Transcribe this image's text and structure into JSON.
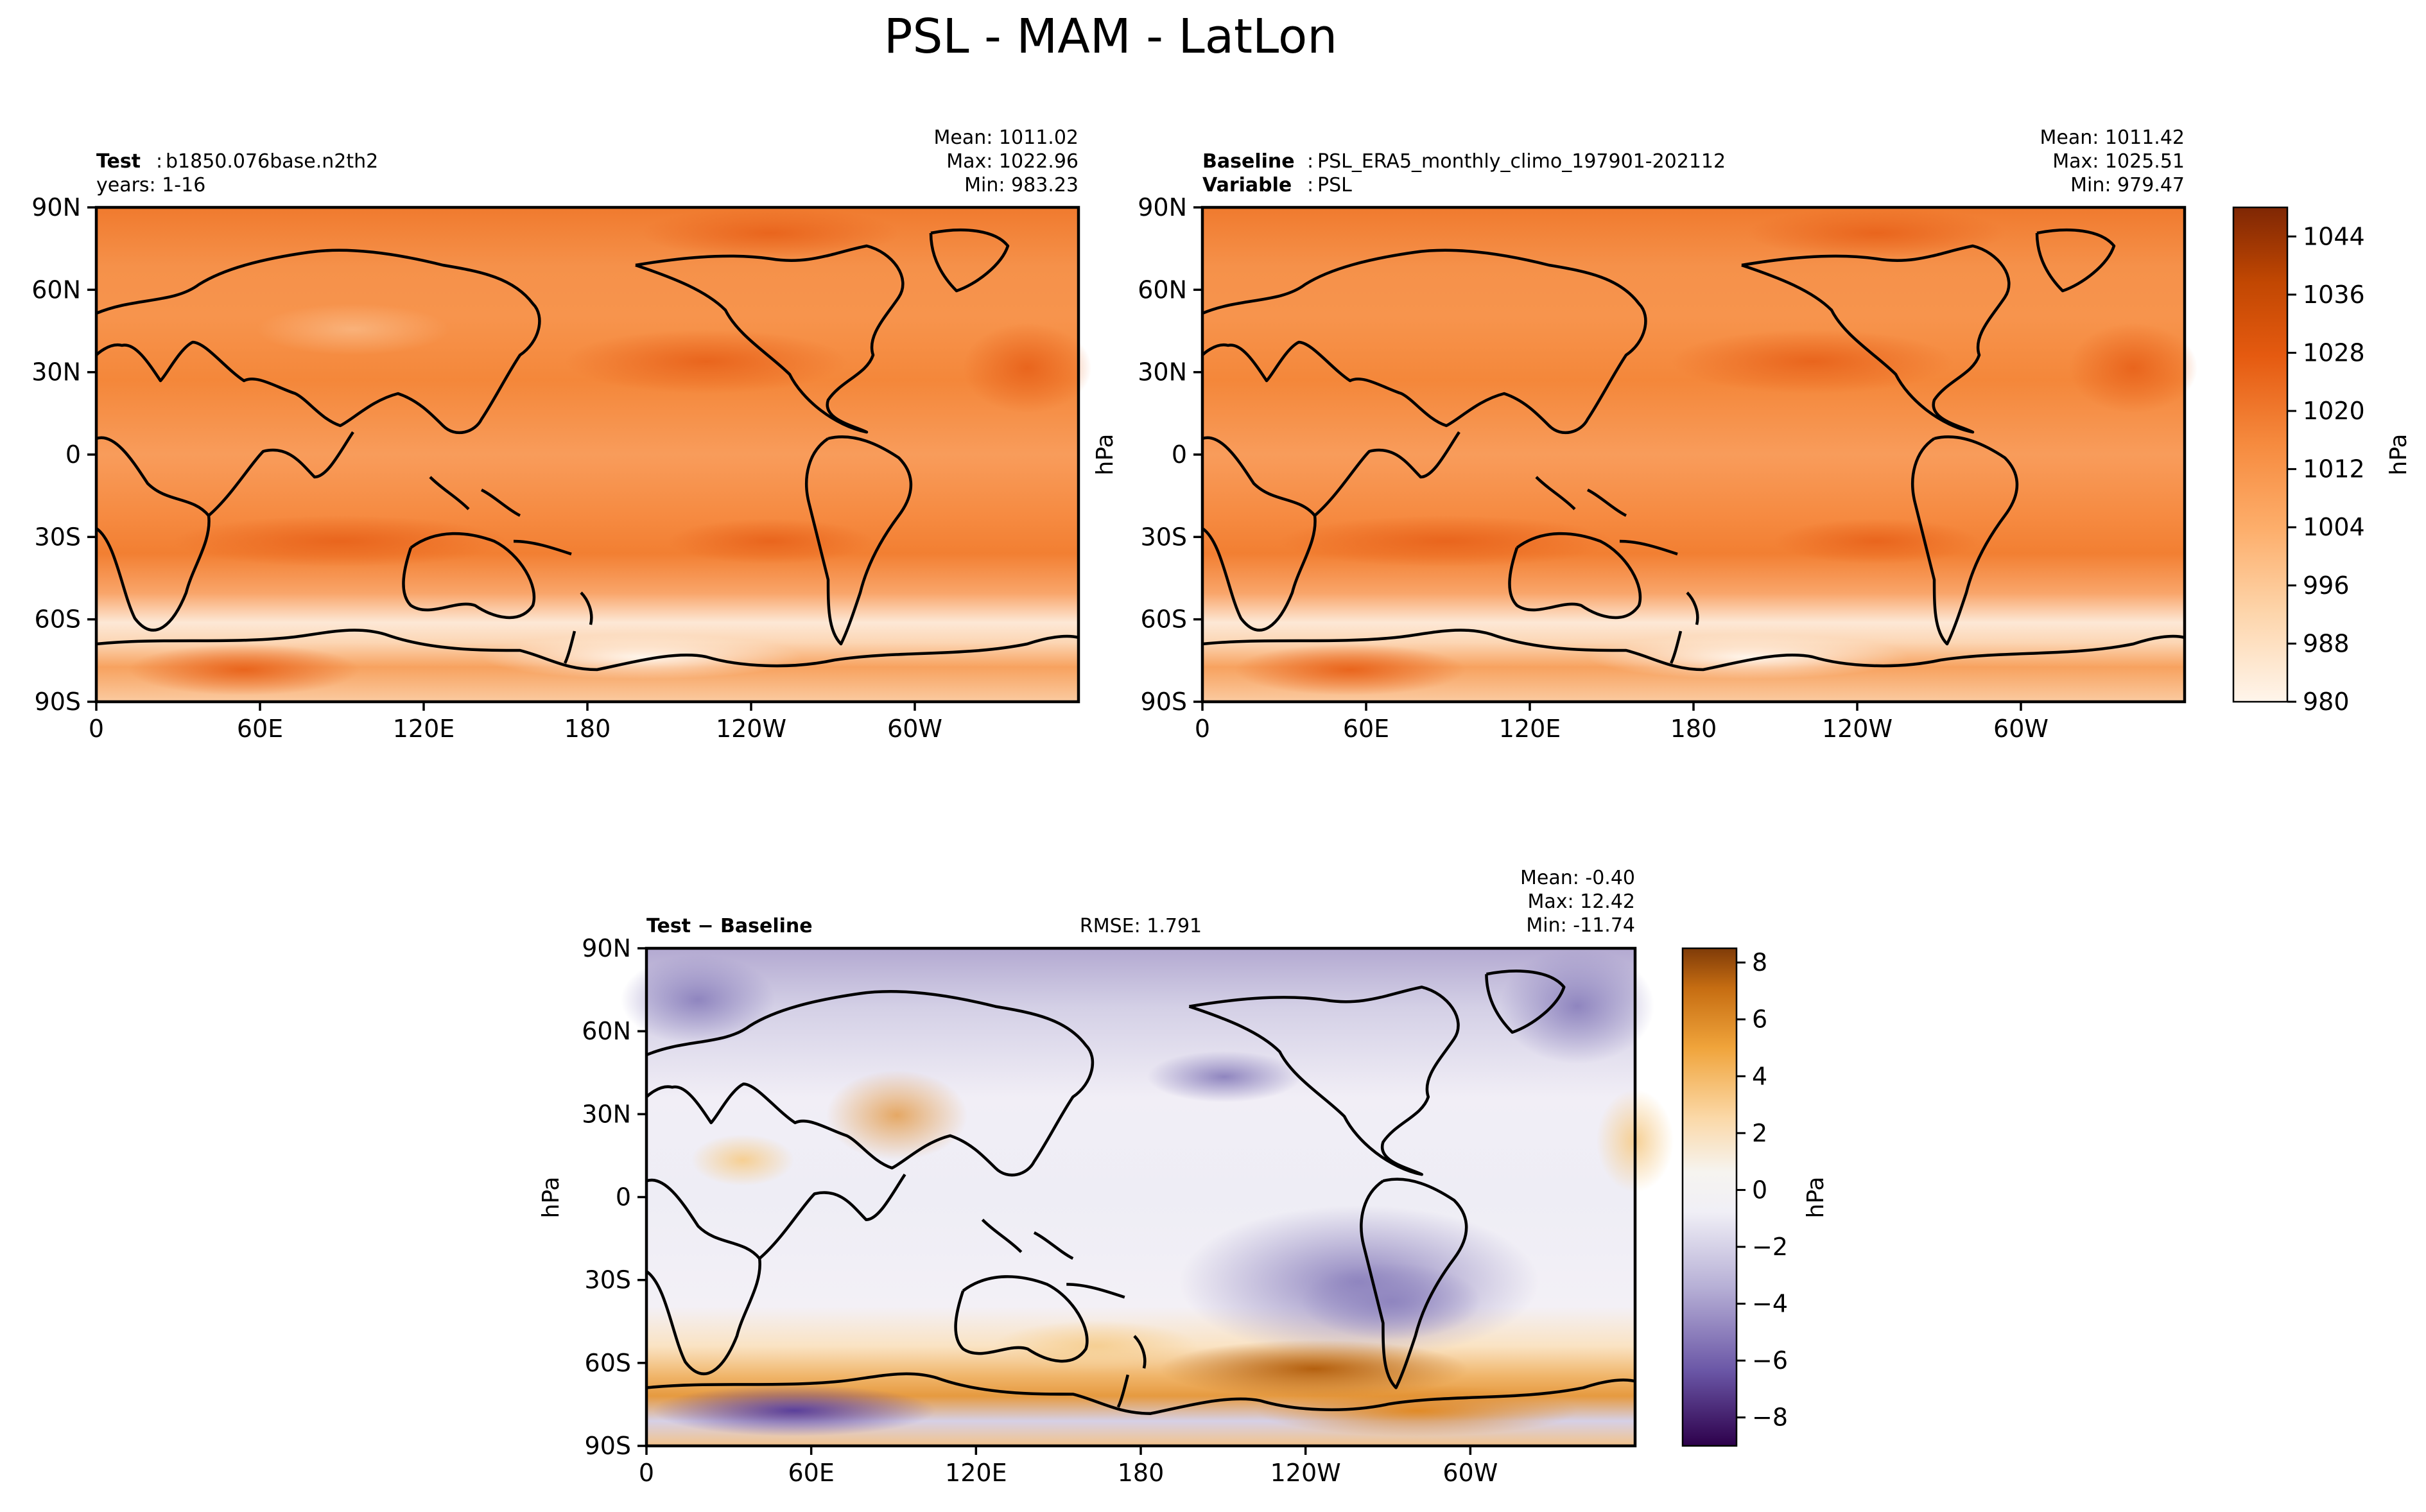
{
  "title": "PSL - MAM - LatLon",
  "chart_data": [
    {
      "type": "heatmap",
      "name": "test",
      "label_bold": "Test",
      "label": "b1850.076base.n2th2",
      "line2": "years: 1-16",
      "stats": {
        "mean": "Mean: 1011.02",
        "max": "Max: 1022.96",
        "min": "Min: 983.23"
      },
      "xticks": [
        "0",
        "60E",
        "120E",
        "180",
        "120W",
        "60W"
      ],
      "yticks": [
        "90N",
        "60N",
        "30N",
        "0",
        "30S",
        "60S",
        "90S"
      ],
      "xlim": [
        0,
        360
      ],
      "ylim": [
        -90,
        90
      ],
      "colormap": "Oranges"
    },
    {
      "type": "heatmap",
      "name": "baseline",
      "label_bold": "Baseline",
      "label": "PSL_ERA5_monthly_climo_197901-202112",
      "line2_bold": "Variable",
      "line2": "PSL",
      "stats": {
        "mean": "Mean: 1011.42",
        "max": "Max: 1025.51",
        "min": "Min: 979.47"
      },
      "xticks": [
        "0",
        "60E",
        "120E",
        "180",
        "120W",
        "60W"
      ],
      "yticks": [
        "90N",
        "60N",
        "30N",
        "0",
        "30S",
        "60S",
        "90S"
      ],
      "xlim": [
        0,
        360
      ],
      "ylim": [
        -90,
        90
      ],
      "colormap": "Oranges",
      "colorbar": {
        "label": "hPa",
        "min": 980,
        "max": 1048,
        "ticks": [
          980,
          988,
          996,
          1004,
          1012,
          1020,
          1028,
          1036,
          1044
        ]
      }
    },
    {
      "type": "heatmap",
      "name": "diff",
      "label_bold": "Test − Baseline",
      "rmse": "RMSE: 1.791",
      "stats": {
        "mean": "Mean: -0.40",
        "max": "Max: 12.42",
        "min": "Min: -11.74"
      },
      "xticks": [
        "0",
        "60E",
        "120E",
        "180",
        "120W",
        "60W"
      ],
      "yticks": [
        "90N",
        "60N",
        "30N",
        "0",
        "30S",
        "60S",
        "90S"
      ],
      "xlim": [
        0,
        360
      ],
      "ylim": [
        -90,
        90
      ],
      "colormap": "PuOr_r",
      "colorbar": {
        "label": "hPa",
        "min": -9,
        "max": 8.5,
        "ticks": [
          8,
          6,
          4,
          2,
          0,
          -2,
          -4,
          -6,
          -8
        ],
        "tick_labels": [
          "8",
          "6",
          "4",
          "2",
          "0",
          "−2",
          "−4",
          "−6",
          "−8"
        ]
      }
    }
  ],
  "ylabel": "hPa"
}
